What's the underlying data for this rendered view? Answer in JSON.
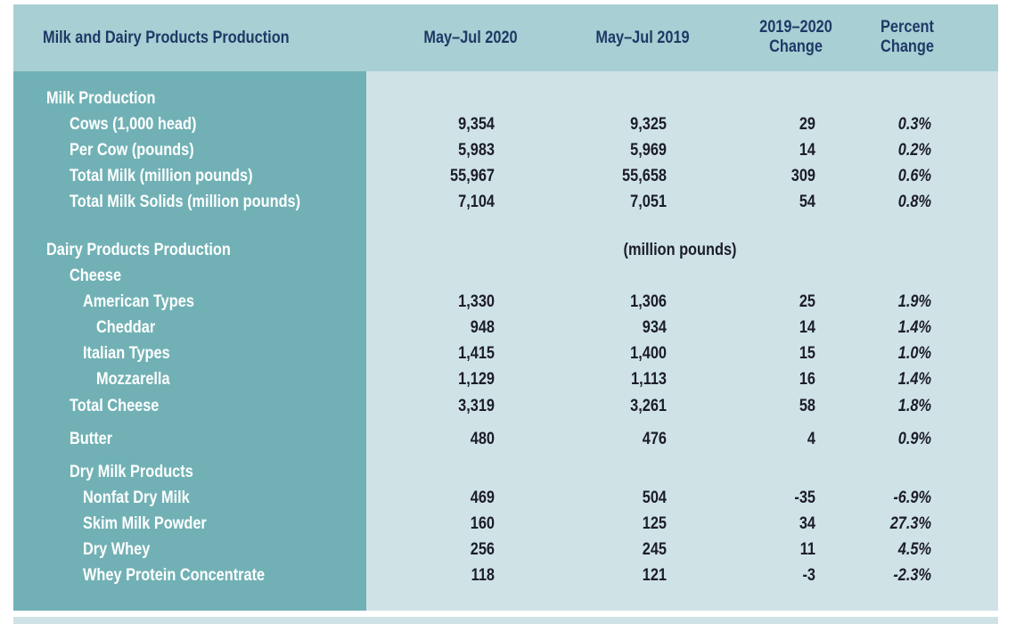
{
  "table": {
    "header": {
      "title": "Milk and Dairy Products Production",
      "columns": [
        [
          "May–Jul 2020"
        ],
        [
          "May–Jul 2019"
        ],
        [
          "2019–2020",
          "Change"
        ],
        [
          "Percent",
          "Change"
        ]
      ]
    },
    "rows": [
      {
        "label": "Milk Production"
      },
      {
        "label": "Cows (1,000 head)",
        "cells": [
          "9,354",
          "9,325",
          "29",
          "0.3%"
        ]
      },
      {
        "label": "Per Cow (pounds)",
        "cells": [
          "5,983",
          "5,969",
          "14",
          "0.2%"
        ]
      },
      {
        "label": "Total Milk (million pounds)",
        "cells": [
          "55,967",
          "55,658",
          "309",
          "0.6%"
        ]
      },
      {
        "label": "Total Milk Solids (million pounds)",
        "cells": [
          "7,104",
          "7,051",
          "54",
          "0.8%"
        ]
      },
      {
        "label": "Dairy Products Production",
        "note": "(million pounds)"
      },
      {
        "label": "Cheese"
      },
      {
        "label": "American Types",
        "cells": [
          "1,330",
          "1,306",
          "25",
          "1.9%"
        ]
      },
      {
        "label": "Cheddar",
        "cells": [
          "948",
          "934",
          "14",
          "1.4%"
        ]
      },
      {
        "label": "Italian Types",
        "cells": [
          "1,415",
          "1,400",
          "15",
          "1.0%"
        ]
      },
      {
        "label": "Mozzarella",
        "cells": [
          "1,129",
          "1,113",
          "16",
          "1.4%"
        ]
      },
      {
        "label": "Total Cheese",
        "cells": [
          "3,319",
          "3,261",
          "58",
          "1.8%"
        ]
      },
      {
        "label": "Butter",
        "cells": [
          "480",
          "476",
          "4",
          "0.9%"
        ]
      },
      {
        "label": "Dry Milk Products"
      },
      {
        "label": "Nonfat Dry Milk",
        "cells": [
          "469",
          "504",
          "-35",
          "-6.9%"
        ]
      },
      {
        "label": "Skim Milk Powder",
        "cells": [
          "160",
          "125",
          "34",
          "27.3%"
        ]
      },
      {
        "label": "Dry Whey",
        "cells": [
          "256",
          "245",
          "11",
          "4.5%"
        ]
      },
      {
        "label": "Whey Protein Concentrate",
        "cells": [
          "118",
          "121",
          "-3",
          "-2.3%"
        ]
      }
    ]
  }
}
